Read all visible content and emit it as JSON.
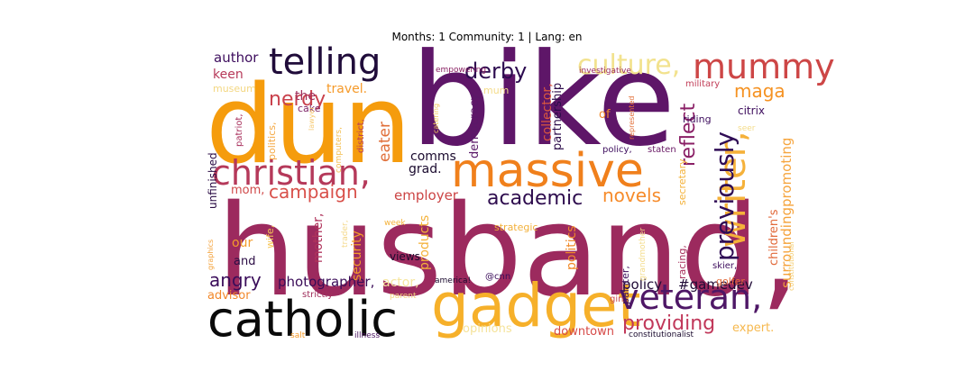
{
  "chart_data": {
    "type": "wordcloud",
    "title": "Months: 1 Community: 1 | Lang: en",
    "words": [
      {
        "text": "husband,",
        "color": "#9c2a5e"
      },
      {
        "text": "bike",
        "color": "#5e1668"
      },
      {
        "text": "dun",
        "color": "#f59c0d"
      },
      {
        "text": "massive",
        "color": "#f0801c"
      },
      {
        "text": "gadget",
        "color": "#f6b02a"
      },
      {
        "text": "catholic",
        "color": "#0a0a0a"
      },
      {
        "text": "christian,",
        "color": "#b5395a"
      },
      {
        "text": "telling",
        "color": "#200c3a"
      },
      {
        "text": "mummy",
        "color": "#cd4646"
      },
      {
        "text": "veteran,",
        "color": "#4e1766"
      },
      {
        "text": "writer,",
        "color": "#f5b13a"
      },
      {
        "text": "previously",
        "color": "#2f0c55"
      },
      {
        "text": "culture,",
        "color": "#f2e28e"
      },
      {
        "text": "providing",
        "color": "#c1385a"
      },
      {
        "text": "academic",
        "color": "#2e0c4e"
      },
      {
        "text": "derby",
        "color": "#2d0c50"
      },
      {
        "text": "nerdy",
        "color": "#c9414c"
      },
      {
        "text": "campaign",
        "color": "#d8504a"
      },
      {
        "text": "novels",
        "color": "#f68b2a"
      },
      {
        "text": "maga",
        "color": "#f59222"
      },
      {
        "text": "reflect",
        "color": "#8a1f66"
      },
      {
        "text": "angry",
        "color": "#3a0d5a"
      },
      {
        "text": "photographer,",
        "color": "#3a0c58"
      },
      {
        "text": "policy",
        "color": "#1f0a36"
      },
      {
        "text": "#gamedev",
        "color": "#1f0a36"
      },
      {
        "text": "surrounding",
        "color": "#f5a23a"
      },
      {
        "text": "promoting",
        "color": "#f6a53e"
      },
      {
        "text": "children's",
        "color": "#e16a3b"
      },
      {
        "text": "author",
        "color": "#3e0e5e"
      },
      {
        "text": "keen",
        "color": "#b73a5a"
      },
      {
        "text": "museum",
        "color": "#f3d782"
      },
      {
        "text": "travel.",
        "color": "#f59a2a"
      },
      {
        "text": "the",
        "color": "#a0305c"
      },
      {
        "text": "cake",
        "color": "#7a1f64"
      },
      {
        "text": "patriot,",
        "color": "#a8305c"
      },
      {
        "text": "politics,",
        "color": "#f5a945"
      },
      {
        "text": "lawyer",
        "color": "#f6c86e"
      },
      {
        "text": "computers,",
        "color": "#f3be4e"
      },
      {
        "text": "district,",
        "color": "#b73a5a"
      },
      {
        "text": "eater",
        "color": "#e06e38"
      },
      {
        "text": "democracy",
        "color": "#5a1868"
      },
      {
        "text": "collector,",
        "color": "#d9563f"
      },
      {
        "text": "partnership",
        "color": "#2b0b4a"
      },
      {
        "text": "mum",
        "color": "#f4dc8a"
      },
      {
        "text": "comms",
        "color": "#1a0a2e"
      },
      {
        "text": "grad.",
        "color": "#1a0a2e"
      },
      {
        "text": "employer",
        "color": "#cc4545"
      },
      {
        "text": "unfinished",
        "color": "#2a0b44"
      },
      {
        "text": "mom,",
        "color": "#d04a4a"
      },
      {
        "text": "our",
        "color": "#f39c2a"
      },
      {
        "text": "wife,",
        "color": "#f5c659"
      },
      {
        "text": "mother,",
        "color": "#b0345c"
      },
      {
        "text": "trader,",
        "color": "#f4d88a"
      },
      {
        "text": "security",
        "color": "#f39c2a"
      },
      {
        "text": "products",
        "color": "#f4b23a"
      },
      {
        "text": "politics",
        "color": "#f08a2a"
      },
      {
        "text": "and",
        "color": "#2a0b44"
      },
      {
        "text": "views",
        "color": "#1a0a2e"
      },
      {
        "text": "advisor",
        "color": "#f2882a"
      },
      {
        "text": "strictly",
        "color": "#a0305c"
      },
      {
        "text": "actor,",
        "color": "#f6e6a0"
      },
      {
        "text": "parent",
        "color": "#f3d782"
      },
      {
        "text": "opinions",
        "color": "#f5e39a"
      },
      {
        "text": "downtown",
        "color": "#d64a48"
      },
      {
        "text": "expert.",
        "color": "#f6b84e"
      },
      {
        "text": "constitutionalist",
        "color": "#1a0a2e"
      },
      {
        "text": "salt",
        "color": "#f59a2a"
      },
      {
        "text": "illness",
        "color": "#4a1260"
      },
      {
        "text": "america!",
        "color": "#1a0a2e"
      },
      {
        "text": "@cnn",
        "color": "#3a0d5a"
      },
      {
        "text": "week",
        "color": "#f4b23a"
      },
      {
        "text": "strategic",
        "color": "#f2b03a"
      },
      {
        "text": "empowering",
        "color": "#8a2264"
      },
      {
        "text": "investigative",
        "color": "#9a2a60"
      },
      {
        "text": "military",
        "color": "#c2405a"
      },
      {
        "text": "riding",
        "color": "#3e0e5e"
      },
      {
        "text": "citrix",
        "color": "#3e0e5e"
      },
      {
        "text": "seer",
        "color": "#f4dc8a"
      },
      {
        "text": "policy,",
        "color": "#3e0e5e"
      },
      {
        "text": "staten",
        "color": "#6a1a66"
      },
      {
        "text": "secretary",
        "color": "#f4b23a"
      },
      {
        "text": "racing,",
        "color": "#a8305c"
      },
      {
        "text": "painter,",
        "color": "#3e0e5e"
      },
      {
        "text": "grandmother",
        "color": "#f4dc8a"
      },
      {
        "text": "skier,",
        "color": "#3e0e5e"
      },
      {
        "text": "golfer",
        "color": "#e26a3a"
      },
      {
        "text": "gin",
        "color": "#c84a4e"
      },
      {
        "text": "constitutional",
        "color": "#f3cd72"
      },
      {
        "text": "of",
        "color": "#f08a2a"
      },
      {
        "text": "catering",
        "color": "#f2c85e"
      },
      {
        "text": "represented",
        "color": "#e2703a"
      },
      {
        "text": "graphics",
        "color": "#f4a23a"
      }
    ]
  }
}
